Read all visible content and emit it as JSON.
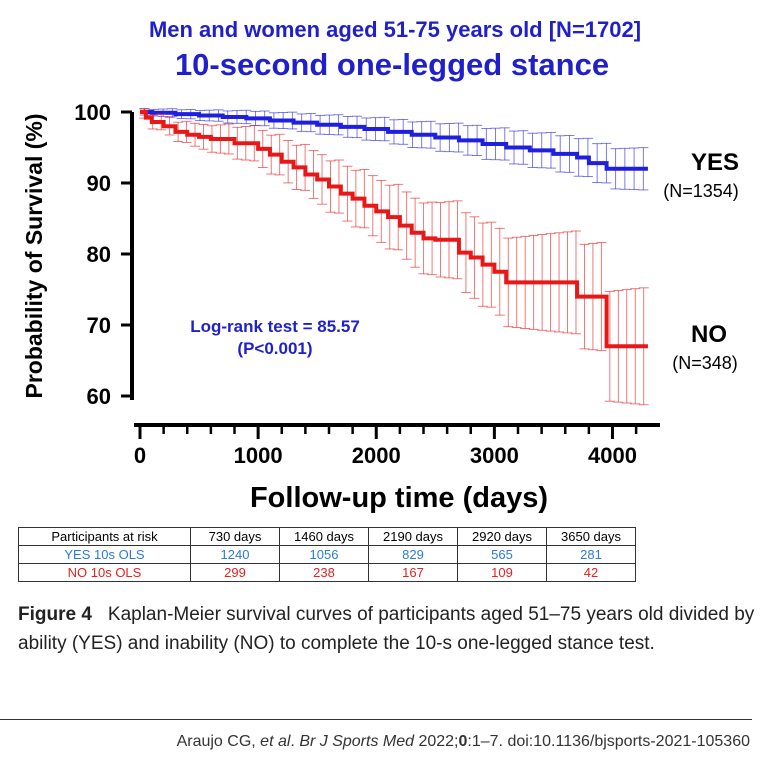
{
  "chart_data": {
    "type": "line",
    "subtitle": "Men and women aged 51-75 years old [N=1702]",
    "title": "10-second one-legged stance",
    "xlabel": "Follow-up time (days)",
    "ylabel": "Probability of Survival (%)",
    "xlim": [
      0,
      4400
    ],
    "ylim": [
      60,
      100
    ],
    "x_ticks": [
      "0",
      "1000",
      "2000",
      "3000",
      "4000"
    ],
    "y_ticks": [
      "60",
      "70",
      "80",
      "90",
      "100"
    ],
    "annotation_line1": "Log-rank test = 85.57",
    "annotation_line2": "(P<0.001)",
    "series": [
      {
        "name": "YES",
        "n_label": "(N=1354)",
        "color": "#1f1fe0",
        "x": [
          0,
          100,
          300,
          500,
          700,
          900,
          1100,
          1300,
          1500,
          1700,
          1900,
          2100,
          2300,
          2500,
          2700,
          2900,
          3100,
          3300,
          3500,
          3700,
          3800,
          3950,
          4300
        ],
        "y": [
          100,
          99.9,
          99.7,
          99.5,
          99.3,
          99.1,
          98.8,
          98.5,
          98.2,
          97.9,
          97.6,
          97.2,
          96.8,
          96.4,
          96.0,
          95.5,
          95.0,
          94.6,
          94.1,
          93.6,
          92.8,
          92.0,
          92.0
        ]
      },
      {
        "name": "NO",
        "n_label": "(N=348)",
        "color": "#e81818",
        "x": [
          0,
          50,
          100,
          200,
          300,
          400,
          500,
          600,
          800,
          1000,
          1100,
          1200,
          1300,
          1400,
          1500,
          1600,
          1700,
          1800,
          1900,
          2000,
          2100,
          2200,
          2300,
          2400,
          2500,
          2700,
          2800,
          2900,
          3000,
          3100,
          3700,
          3950,
          4300
        ],
        "y": [
          100,
          99.2,
          98.6,
          98.0,
          97.2,
          96.8,
          96.5,
          96.2,
          95.6,
          94.8,
          94.0,
          93.0,
          92.2,
          91.2,
          90.5,
          89.5,
          88.5,
          87.8,
          86.8,
          86.0,
          85.2,
          84.0,
          83.0,
          82.2,
          82.0,
          80.2,
          79.5,
          78.5,
          77.5,
          76.0,
          74.0,
          67.0,
          67.0
        ]
      }
    ]
  },
  "risk_table": {
    "header": [
      "Participants at risk",
      "730 days",
      "1460 days",
      "2190 days",
      "2920 days",
      "3650 days"
    ],
    "yes_row": [
      "YES 10s OLS",
      "1240",
      "1056",
      "829",
      "565",
      "281"
    ],
    "no_row": [
      "NO 10s OLS",
      "299",
      "238",
      "167",
      "109",
      "42"
    ]
  },
  "caption": {
    "label": "Figure 4",
    "text": "Kaplan-Meier survival curves of participants aged 51–75 years old divided by ability (YES) and inability (NO) to complete the 10-s one-legged stance test."
  },
  "citation": {
    "authors": "Araujo CG, ",
    "etal": "et al",
    "sep": ". ",
    "journal": "Br J Sports Med",
    "year": " 2022;",
    "volume": "0",
    "rest": ":1–7. doi:10.1136/bjsports-2021-105360"
  }
}
